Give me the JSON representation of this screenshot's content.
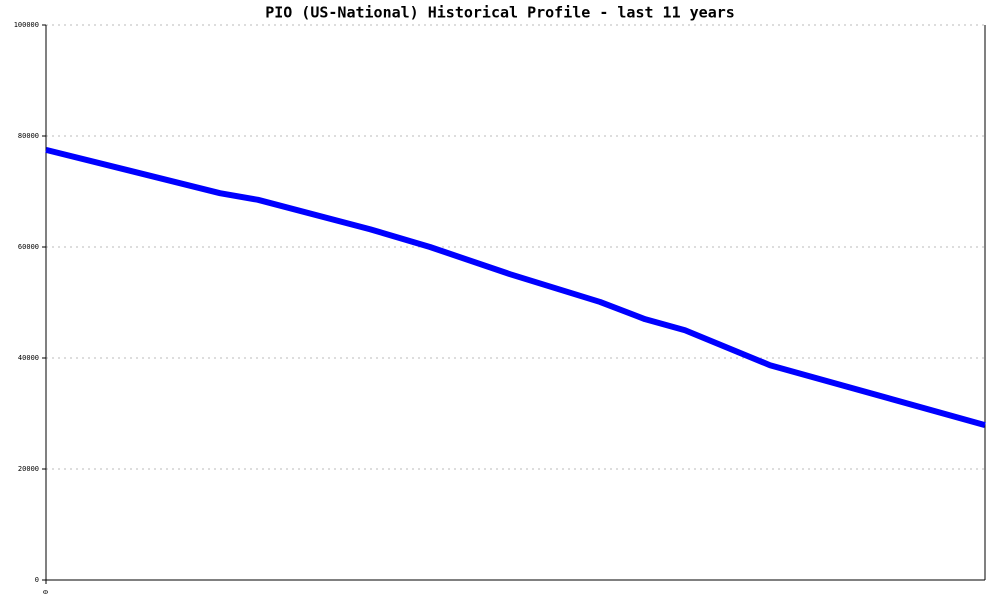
{
  "chart_data": {
    "type": "line",
    "title": "PIO (US-National) Historical Profile - last 11 years",
    "x": [
      0,
      174,
      212,
      324,
      384,
      464,
      554,
      599,
      639,
      724,
      939
    ],
    "series": [
      {
        "color": "#0000ff",
        "values": [
          77500,
          69700,
          68500,
          63200,
          60000,
          55100,
          50100,
          47000,
          45000,
          38700,
          27900
        ]
      }
    ],
    "xlim": [
      0,
      939
    ],
    "xticks": [
      0
    ],
    "ylim": [
      0,
      100000
    ],
    "yticks": [
      0,
      20000,
      40000,
      60000,
      80000,
      100000
    ],
    "grid": true
  }
}
